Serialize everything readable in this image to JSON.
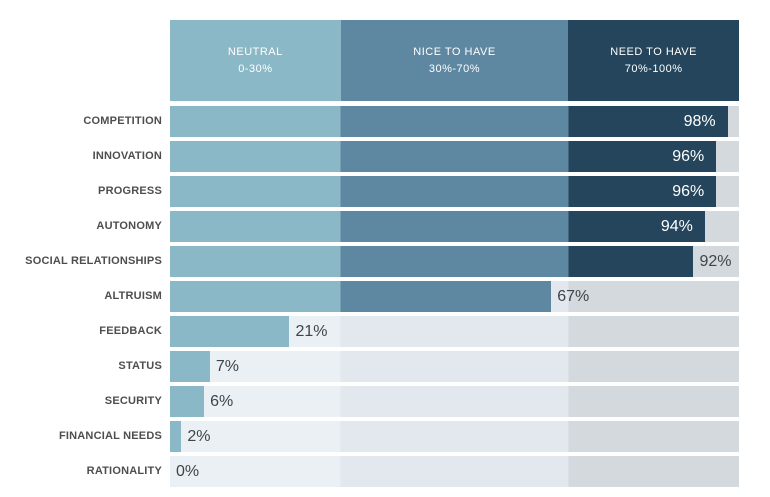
{
  "chart_data": {
    "type": "bar",
    "orientation": "horizontal",
    "title": "",
    "xlabel": "",
    "ylabel": "",
    "xlim": [
      0,
      100
    ],
    "grid": false,
    "categories": [
      "COMPETITION",
      "INNOVATION",
      "PROGRESS",
      "AUTONOMY",
      "SOCIAL RELATIONSHIPS",
      "ALTRUISM",
      "FEEDBACK",
      "STATUS",
      "SECURITY",
      "FINANCIAL NEEDS",
      "RATIONALITY"
    ],
    "values": [
      98,
      96,
      96,
      94,
      92,
      67,
      21,
      7,
      6,
      2,
      0
    ],
    "value_labels": [
      "98%",
      "96%",
      "96%",
      "94%",
      "92%",
      "67%",
      "21%",
      "7%",
      "6%",
      "2%",
      "0%"
    ],
    "value_label_positions": [
      "inside",
      "inside",
      "inside",
      "inside",
      "outside",
      "outside",
      "outside",
      "outside",
      "outside",
      "outside",
      "outside"
    ],
    "zones": [
      {
        "label": "NEUTRAL",
        "range_label": "0-30%",
        "from": 0,
        "to": 30,
        "bar_color": "#8bb8c6",
        "track_color": "#eaf0f4",
        "text_color": "#ffffff"
      },
      {
        "label": "NICE TO HAVE",
        "range_label": "30%-70%",
        "from": 30,
        "to": 70,
        "bar_color": "#5e87a2",
        "track_color": "#e2e8ee",
        "text_color": "#ffffff"
      },
      {
        "label": "NEED TO HAVE",
        "range_label": "70%-100%",
        "from": 70,
        "to": 100,
        "bar_color": "#24455b",
        "track_color": "#d3d9dd",
        "text_color": "#ffffff"
      }
    ],
    "colors": {
      "category_label": "#4e4e4e",
      "value_label_outside": "#3f4449",
      "value_label_inside": "#ffffff",
      "background": "#ffffff"
    }
  }
}
